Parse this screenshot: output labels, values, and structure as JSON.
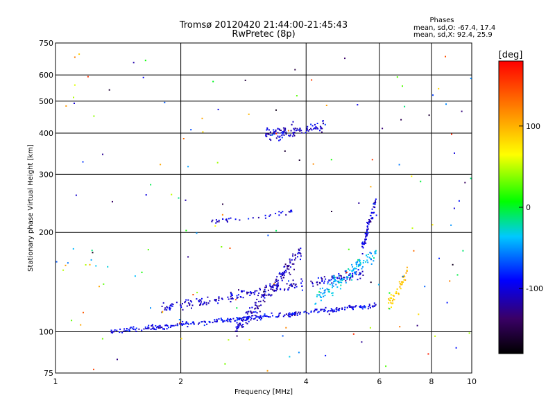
{
  "chart_data": {
    "type": "scatter",
    "title": "Tromsø 20120420 21:44:00-21:45:43",
    "subtitle": "RwPretec (8p)",
    "xlabel": "Frequency [MHz]",
    "ylabel": "Stationary phase Virtual Height [km]",
    "x_scale": "log",
    "y_scale": "log",
    "xlim": [
      1,
      10
    ],
    "ylim": [
      75,
      750
    ],
    "x_ticks": [
      1,
      2,
      4,
      6,
      8,
      10
    ],
    "x_tick_labels": [
      "1",
      "2",
      "4",
      "6",
      "8",
      "10"
    ],
    "y_ticks": [
      75,
      100,
      200,
      300,
      400,
      500,
      600,
      750
    ],
    "y_tick_labels": [
      "75",
      "100",
      "200",
      "300",
      "400",
      "500",
      "600",
      "750"
    ],
    "grid": true,
    "phases_box": {
      "title": "Phases",
      "line1": "mean, sd,O: -67.4, 17.4",
      "line2": "mean, sd,X:  92.4, 25.9"
    },
    "colorbar": {
      "label": "[deg]",
      "range": [
        -180,
        180
      ],
      "ticks": [
        -100,
        0,
        100
      ],
      "tick_labels": [
        "-100",
        "0",
        "100"
      ]
    },
    "traces": [
      {
        "x_start": 1.35,
        "x_end": 5.9,
        "h_start": 100,
        "h_end": 120,
        "phase": -95,
        "n": 300,
        "spread": 0.025
      },
      {
        "x_start": 1.8,
        "x_end": 5.5,
        "h_start": 118,
        "h_end": 150,
        "phase": -105,
        "n": 230,
        "spread": 0.05
      },
      {
        "x_start": 2.7,
        "x_end": 3.9,
        "h_start": 100,
        "h_end": 175,
        "phase": -110,
        "n": 170,
        "spread": 0.09
      },
      {
        "x_start": 4.2,
        "x_end": 5.9,
        "h_start": 125,
        "h_end": 175,
        "phase": -40,
        "n": 130,
        "spread": 0.09
      },
      {
        "x_start": 5.45,
        "x_end": 5.9,
        "h_start": 180,
        "h_end": 250,
        "phase": -100,
        "n": 70,
        "spread": 0.07
      },
      {
        "x_start": 3.2,
        "x_end": 4.4,
        "h_start": 395,
        "h_end": 420,
        "phase": -105,
        "n": 110,
        "spread": 0.07
      },
      {
        "x_start": 2.3,
        "x_end": 3.7,
        "h_start": 215,
        "h_end": 230,
        "phase": -100,
        "n": 35,
        "spread": 0.03
      },
      {
        "x_start": 6.3,
        "x_end": 7.0,
        "h_start": 120,
        "h_end": 150,
        "phase": 90,
        "n": 45,
        "spread": 0.07
      },
      {
        "x_start": 1.0,
        "x_end": 10.0,
        "h_start": 76,
        "h_end": 700,
        "phase": 0,
        "n": 160,
        "spread": 1.0
      }
    ]
  }
}
